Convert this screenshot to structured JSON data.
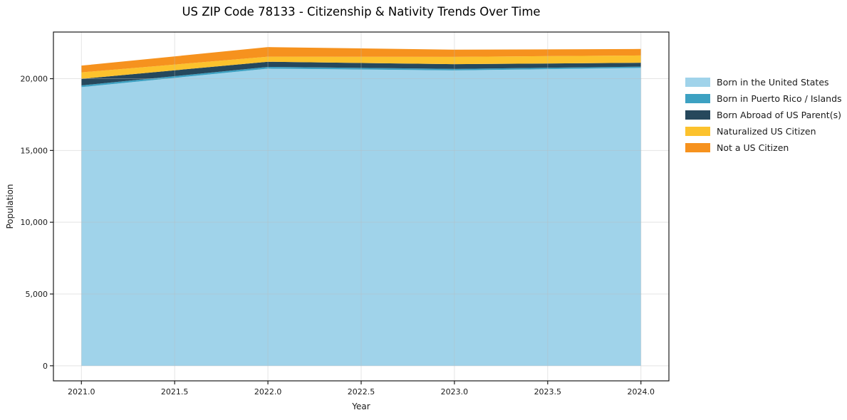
{
  "chart_data": {
    "type": "area",
    "stacked": true,
    "title": "US ZIP Code 78133 - Citizenship & Nativity Trends Over Time",
    "xlabel": "Year",
    "ylabel": "Population",
    "x": [
      2021,
      2022,
      2023,
      2024
    ],
    "series": [
      {
        "name": "Born in the United States",
        "color": "#a0d3ea",
        "values": [
          19410,
          20700,
          20580,
          20750
        ]
      },
      {
        "name": "Born in Puerto Rico / Islands",
        "color": "#3da1c2",
        "values": [
          120,
          120,
          100,
          90
        ]
      },
      {
        "name": "Born Abroad of US Parent(s)",
        "color": "#26485c",
        "values": [
          460,
          360,
          330,
          270
        ]
      },
      {
        "name": "Naturalized US Citizen",
        "color": "#fcc22d",
        "values": [
          450,
          350,
          510,
          510
        ]
      },
      {
        "name": "Not a US Citizen",
        "color": "#f6921e",
        "values": [
          470,
          670,
          500,
          450
        ]
      }
    ],
    "totals": [
      20910,
      22200,
      22020,
      22070
    ],
    "xlim": [
      2020.85,
      2024.15
    ],
    "ylim": [
      -1050,
      23250
    ],
    "xticks": {
      "values": [
        2021.0,
        2021.5,
        2022.0,
        2022.5,
        2023.0,
        2023.5,
        2024.0
      ],
      "labels": [
        "2021.0",
        "2021.5",
        "2022.0",
        "2022.5",
        "2023.0",
        "2023.5",
        "2024.0"
      ]
    },
    "yticks": {
      "values": [
        0,
        5000,
        10000,
        15000,
        20000
      ],
      "labels": [
        "0",
        "5,000",
        "10,000",
        "15,000",
        "20,000"
      ]
    },
    "grid": true,
    "grid_color": "#bbbbbb",
    "axis_color": "#1a1a1a",
    "legend_position": "right-outside"
  }
}
